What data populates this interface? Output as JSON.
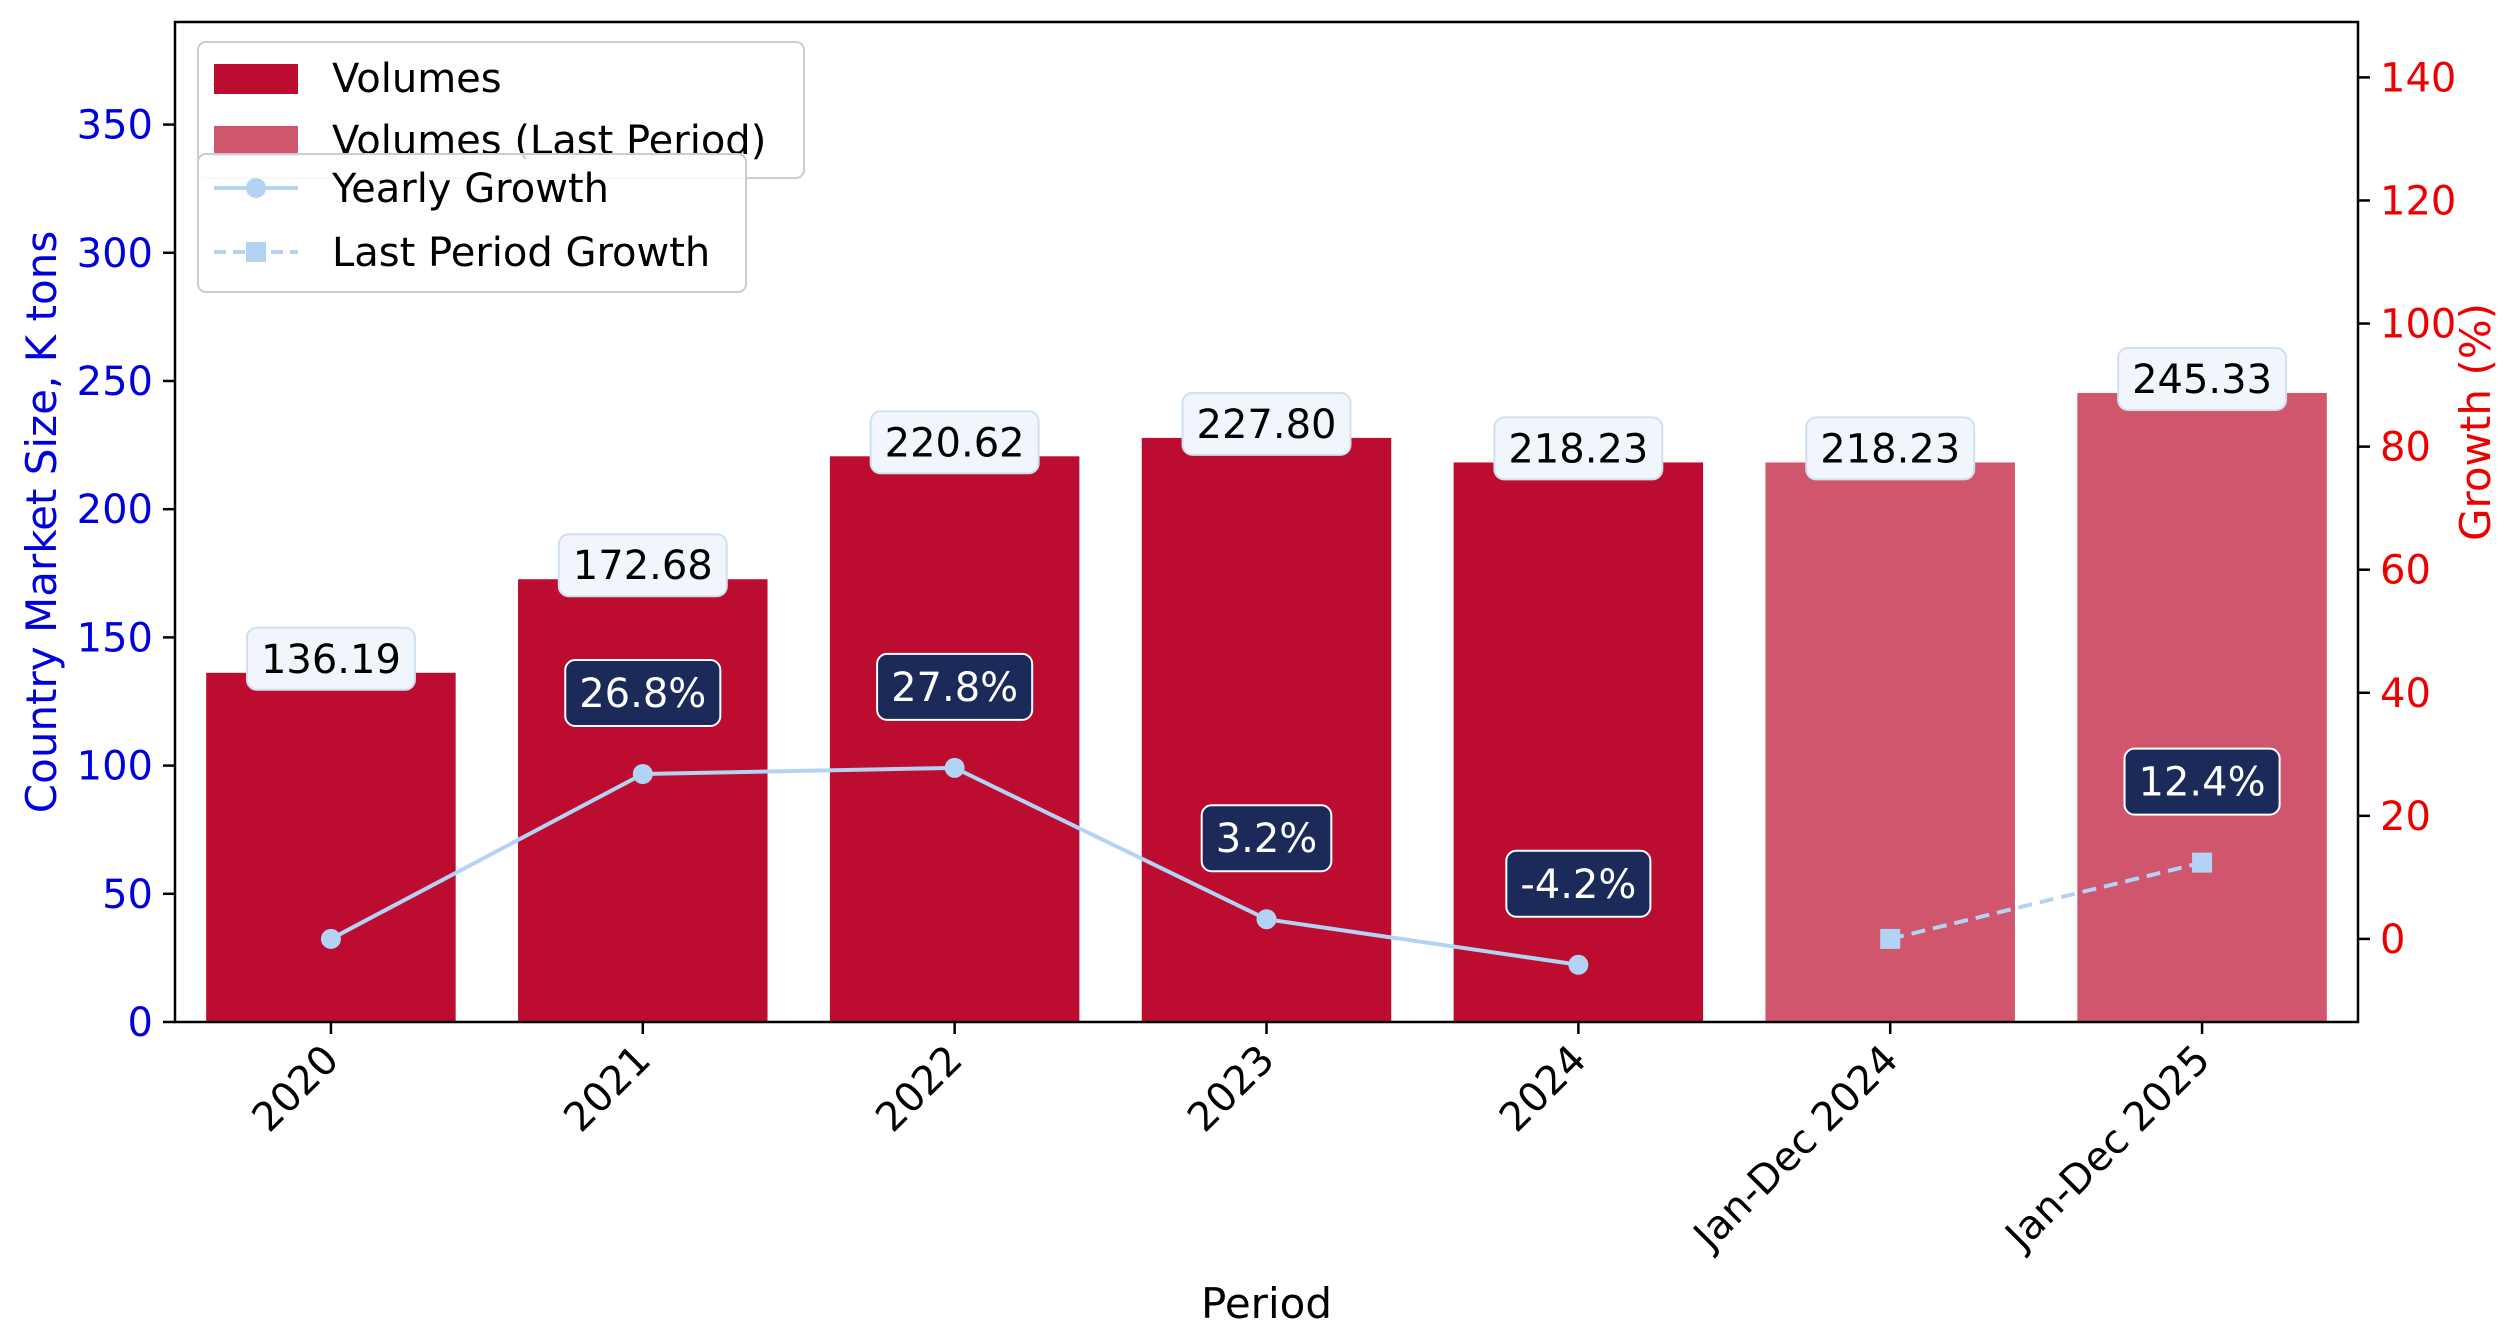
{
  "chart_data": {
    "type": "bar",
    "xlabel": "Period",
    "ylabel": "Country Market Size, K tons",
    "y2label": "Growth (%)",
    "ylim": [
      0,
      390
    ],
    "y2lim": [
      -13.5,
      149
    ],
    "yticks": [
      0,
      50,
      100,
      150,
      200,
      250,
      300,
      350
    ],
    "y2ticks": [
      0,
      20,
      40,
      60,
      80,
      100,
      120,
      140
    ],
    "categories": [
      "2020",
      "2021",
      "2022",
      "2023",
      "2024",
      "Jan-Dec 2024",
      "Jan-Dec 2025"
    ],
    "series": [
      {
        "name": "Volumes",
        "type": "bar",
        "color": "#bc0c30",
        "values": [
          136.19,
          172.68,
          220.62,
          227.8,
          218.23,
          null,
          null
        ],
        "labels": [
          "136.19",
          "172.68",
          "220.62",
          "227.80",
          "218.23",
          "",
          ""
        ]
      },
      {
        "name": "Volumes (Last Period)",
        "type": "bar",
        "color": "#d0566d",
        "values": [
          null,
          null,
          null,
          null,
          null,
          218.23,
          245.33
        ],
        "labels": [
          "",
          "",
          "",
          "",
          "",
          "218.23",
          "245.33"
        ]
      },
      {
        "name": "Yearly Growth",
        "type": "line",
        "axis": "right",
        "color": "#b3d3f5",
        "marker": "circle",
        "values": [
          0,
          26.8,
          27.8,
          3.2,
          -4.2,
          null,
          null
        ],
        "labels": [
          "",
          "26.8%",
          "27.8%",
          "3.2%",
          "-4.2%",
          "",
          ""
        ]
      },
      {
        "name": "Last Period Growth",
        "type": "line",
        "axis": "right",
        "color": "#b3d3f5",
        "marker": "square",
        "dashed": true,
        "values": [
          null,
          null,
          null,
          null,
          null,
          0,
          12.4
        ],
        "labels": [
          "",
          "",
          "",
          "",
          "",
          "",
          "12.4%"
        ]
      }
    ],
    "colors": {
      "left_axis": "#0000dd",
      "right_axis": "#ee0000",
      "label_box_bar": "#f0f6fc",
      "label_box_growth": "#1c2a5a"
    },
    "legend": [
      {
        "label": "Volumes",
        "kind": "patch",
        "color": "#bc0c30"
      },
      {
        "label": "Volumes (Last Period)",
        "kind": "patch",
        "color": "#d0566d"
      },
      {
        "label": "Yearly Growth",
        "kind": "line-circle",
        "color": "#b3d3f5"
      },
      {
        "label": "Last Period Growth",
        "kind": "line-square-dashed",
        "color": "#b3d3f5"
      }
    ],
    "legend_position": "top-left",
    "grid": false
  }
}
